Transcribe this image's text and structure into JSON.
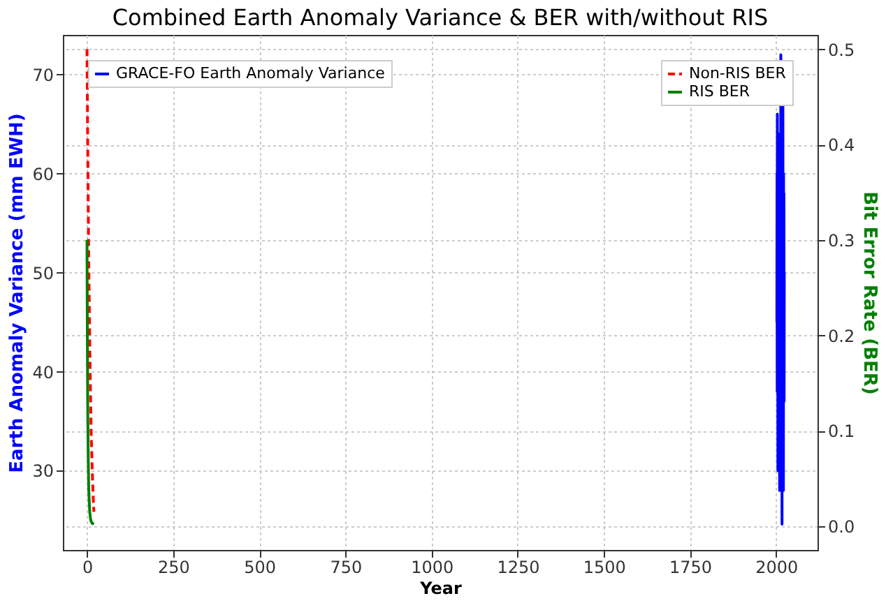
{
  "chart_data": {
    "type": "line",
    "title": "Combined Earth Anomaly Variance & BER with/without RIS",
    "xlabel": "Year",
    "ylabel": "Earth Anomaly Variance (mm EWH)",
    "y2label": "Bit Error Rate (BER)",
    "xlim": [
      -70,
      2120
    ],
    "xticks": [
      0,
      250,
      500,
      750,
      {
        "value": 1000,
        "label": "1000"
      },
      {
        "value": 1250,
        "label": "1250"
      },
      {
        "value": 1500,
        "label": "1500"
      },
      {
        "value": 1750,
        "label": "1750"
      },
      {
        "value": 2000,
        "label": "2000"
      }
    ],
    "ylim": [
      22,
      74
    ],
    "yticks": [
      30,
      40,
      50,
      60,
      70
    ],
    "y2lim": [
      -0.025,
      0.515
    ],
    "y2ticks": [
      {
        "value": 0,
        "label": "0.0"
      },
      0.1,
      0.2,
      0.3,
      0.4,
      0.5
    ],
    "grid": true,
    "legend": "top left",
    "marker": "none",
    "series": [
      {
        "name": "GRACE-FO Earth Anomaly Variance",
        "color": "#0000ff",
        "axis": "y",
        "line_style": "solid",
        "x": [
          2002.0,
          2002.5,
          2003.0,
          2003.5,
          2004.0,
          2004.5,
          2005.0,
          2005.5,
          2006.0,
          2006.5,
          2007.0,
          2007.5,
          2008.0,
          2008.5,
          2009.0,
          2009.5,
          2010.0,
          2010.5,
          2011.0,
          2011.5,
          2012.0,
          2012.5,
          2013.0,
          2013.5,
          2014.0,
          2014.5,
          2015.0,
          2015.5,
          2016.0,
          2016.5,
          2017.0,
          2017.5,
          2018.0,
          2018.5,
          2019.0,
          2019.5,
          2020.0,
          2020.5,
          2021.0,
          2021.5,
          2022.0,
          2022.5,
          2023.0,
          2023.5
        ],
        "values": [
          45,
          60,
          38,
          66,
          42,
          55,
          30,
          62,
          48,
          64,
          35,
          58,
          44,
          64,
          40,
          52,
          28,
          63,
          46,
          57,
          36,
          63,
          50,
          72,
          41,
          54,
          33,
          61,
          47,
          59,
          24.6,
          65,
          43,
          56,
          39,
          67,
          49,
          53,
          28,
          60,
          45,
          58,
          37,
          50
        ]
      },
      {
        "name": "Non-RIS BER",
        "color": "#ff0000",
        "axis": "y2",
        "line_style": "dashed",
        "x": [
          0,
          1,
          2,
          3,
          4,
          5,
          6,
          8,
          10,
          12,
          15,
          18,
          20
        ],
        "values": [
          0.5,
          0.45,
          0.4,
          0.36,
          0.32,
          0.28,
          0.25,
          0.19,
          0.14,
          0.1,
          0.06,
          0.03,
          0.015
        ]
      },
      {
        "name": "RIS BER",
        "color": "#008000",
        "axis": "y2",
        "line_style": "solid",
        "x": [
          0,
          1,
          2,
          3,
          4,
          5,
          6,
          8,
          10,
          12,
          15,
          20
        ],
        "values": [
          0.3,
          0.2,
          0.13,
          0.09,
          0.06,
          0.04,
          0.03,
          0.015,
          0.008,
          0.005,
          0.003,
          0.002
        ]
      }
    ]
  }
}
